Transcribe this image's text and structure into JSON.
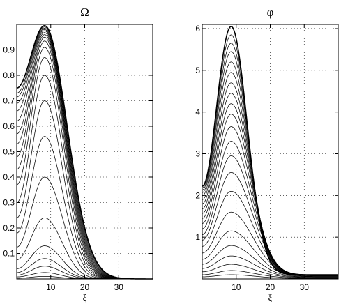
{
  "chart_data": [
    {
      "type": "line",
      "title": "Ω",
      "xlabel": "ξ",
      "ylabel": "",
      "xlim": [
        0,
        40
      ],
      "ylim": [
        0,
        1.0
      ],
      "x_ticks": [
        10,
        20,
        30
      ],
      "y_ticks": [
        0.1,
        0.2,
        0.3,
        0.4,
        0.5,
        0.6,
        0.7,
        0.8,
        0.9
      ],
      "x_tick_labels": [
        "10",
        "20",
        "30"
      ],
      "y_tick_labels": [
        "0.1",
        "0.2",
        "0.3",
        "0.4",
        "0.5",
        "0.6",
        "0.7",
        "0.8",
        "0.9"
      ],
      "grid": true,
      "peak_x": 8.2,
      "curve_family": "nested curves of increasing amplitude, each peaking near ξ≈8 and decaying to 0 by ξ≈40",
      "series_peaks": [
        0.01,
        0.025,
        0.05,
        0.08,
        0.13,
        0.24,
        0.4,
        0.56,
        0.7,
        0.8,
        0.87,
        0.91,
        0.935,
        0.95,
        0.96,
        0.968,
        0.975,
        0.98,
        0.985,
        0.99,
        0.995
      ],
      "series_left_values": [
        0.003,
        0.008,
        0.015,
        0.025,
        0.04,
        0.075,
        0.125,
        0.18,
        0.24,
        0.3,
        0.37,
        0.43,
        0.48,
        0.53,
        0.57,
        0.62,
        0.66,
        0.69,
        0.715,
        0.73,
        0.75
      ]
    },
    {
      "type": "line",
      "title": "φ",
      "xlabel": "ξ",
      "ylabel": "",
      "xlim": [
        0,
        40
      ],
      "ylim": [
        0,
        6.1
      ],
      "x_ticks": [
        10,
        20,
        30
      ],
      "y_ticks": [
        1,
        2,
        3,
        4,
        5,
        6
      ],
      "x_tick_labels": [
        "10",
        "20",
        "30"
      ],
      "y_tick_labels": [
        "1",
        "2",
        "3",
        "4",
        "5",
        "6"
      ],
      "grid": true,
      "peak_x": 8.5,
      "curve_family": "nested sharply peaked curves centered near ξ≈8.5, decaying toward ≈0.1 at ξ=40",
      "series_peaks": [
        0.1,
        0.2,
        0.35,
        0.55,
        0.8,
        1.15,
        1.6,
        2.1,
        2.55,
        2.95,
        3.3,
        3.65,
        3.95,
        4.2,
        4.45,
        4.7,
        4.95,
        5.2,
        5.45,
        5.65,
        5.85,
        6.05
      ],
      "series_left_values": [
        0.05,
        0.1,
        0.17,
        0.25,
        0.35,
        0.47,
        0.62,
        0.78,
        0.93,
        1.06,
        1.2,
        1.33,
        1.45,
        1.57,
        1.68,
        1.8,
        1.9,
        1.99,
        2.07,
        2.13,
        2.18,
        2.22
      ],
      "series_right_values": [
        0.01,
        0.02,
        0.03,
        0.04,
        0.05,
        0.06,
        0.07,
        0.08,
        0.085,
        0.09,
        0.095,
        0.1,
        0.1,
        0.1,
        0.1,
        0.1,
        0.1,
        0.1,
        0.1,
        0.1,
        0.1,
        0.1
      ]
    }
  ]
}
